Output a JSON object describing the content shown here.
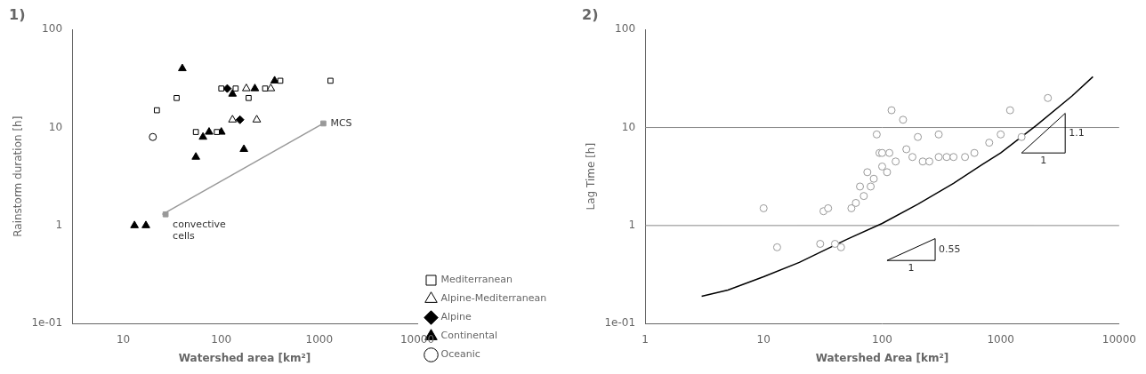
{
  "chart_data": [
    {
      "type": "scatter",
      "title": "1)",
      "x_label": "Watershed area [km²]",
      "y_label": "Rainstorm duration [h]",
      "log": true,
      "grid": false,
      "legend": "lower right",
      "xlim": [
        3,
        10000
      ],
      "ylim": [
        0.1,
        100
      ],
      "xticks": [
        10,
        100,
        1000,
        10000
      ],
      "yticks": [
        {
          "value": 0.1,
          "label": "1e-01"
        },
        1,
        10,
        100
      ],
      "series": [
        {
          "name": "Mediterranean",
          "type": "scatter",
          "marker": "square_open",
          "color": "black",
          "x": [
            22,
            35,
            55,
            90,
            100,
            140,
            190,
            280,
            400,
            1300
          ],
          "y": [
            15,
            20,
            9,
            9,
            25,
            25,
            20,
            25,
            30,
            30
          ]
        },
        {
          "name": "Alpine-Mediterranean",
          "type": "scatter",
          "marker": "triangle_open",
          "color": "black",
          "x": [
            130,
            180,
            230,
            320
          ],
          "y": [
            12,
            25,
            12,
            25
          ]
        },
        {
          "name": "Alpine",
          "type": "scatter",
          "marker": "diamond",
          "color": "black",
          "x": [
            115,
            155
          ],
          "y": [
            25,
            12
          ]
        },
        {
          "name": "Continental",
          "type": "scatter",
          "marker": "triangle",
          "color": "black",
          "x": [
            13,
            17,
            40,
            55,
            65,
            75,
            100,
            130,
            170,
            220,
            350
          ],
          "y": [
            1.0,
            1.0,
            40,
            5,
            8,
            9,
            9,
            22,
            6,
            25,
            30
          ]
        },
        {
          "name": "Oceanic",
          "type": "scatter",
          "marker": "circle_open",
          "color": "black",
          "x": [
            20
          ],
          "y": [
            8
          ]
        },
        {
          "type": "line",
          "color": "#999999",
          "x": [
            25,
            1100
          ],
          "y": [
            1.3,
            11.0
          ]
        },
        {
          "type": "scatter",
          "marker": "square",
          "color": "#999999",
          "x": [
            27,
            1100
          ],
          "y": [
            1.3,
            11.0
          ]
        }
      ],
      "annotations": [
        {
          "text": "convective\ncells",
          "x": 27,
          "y": 1.3
        },
        {
          "text": "MCS",
          "x": 1100,
          "y": 11.0
        }
      ]
    },
    {
      "type": "scatter",
      "title": "2)",
      "x_label": "Watershed Area [km²]",
      "y_label": "Lag Time [h]",
      "log": true,
      "grid": false,
      "xlim": [
        1,
        10000
      ],
      "ylim": [
        0.1,
        100
      ],
      "xticks": [
        1,
        10,
        100,
        1000,
        10000
      ],
      "yticks": [
        {
          "value": 0.1,
          "label": "1e-01"
        },
        1,
        10,
        100
      ],
      "series": [
        {
          "type": "scatter",
          "marker": "circle_open",
          "color": "#999999",
          "x": [
            10,
            13,
            30,
            32,
            35,
            40,
            45,
            55,
            60,
            65,
            70,
            75,
            80,
            85,
            90,
            95,
            100,
            100,
            110,
            115,
            120,
            130,
            150,
            160,
            180,
            200,
            220,
            250,
            300,
            300,
            350,
            400,
            500,
            600,
            800,
            1000,
            1200,
            1500,
            2500
          ],
          "y": [
            1.5,
            0.6,
            0.65,
            1.4,
            1.5,
            0.65,
            0.6,
            1.5,
            1.7,
            2.5,
            2.0,
            3.5,
            2.5,
            3.0,
            8.5,
            5.5,
            4.0,
            5.5,
            3.5,
            5.5,
            15,
            4.5,
            12,
            6.0,
            5.0,
            8.0,
            4.5,
            4.5,
            5.0,
            8.5,
            5.0,
            5.0,
            5.0,
            5.5,
            7.0,
            8.5,
            15,
            8.0,
            20
          ]
        },
        {
          "type": "line",
          "color": "black",
          "x": [
            3,
            5,
            10,
            20,
            50,
            100,
            200,
            400,
            700,
            1000,
            2000,
            4000,
            6000
          ],
          "y": [
            0.19,
            0.22,
            0.3,
            0.42,
            0.72,
            1.05,
            1.65,
            2.7,
            4.2,
            5.5,
            10.5,
            21.0,
            33.0
          ]
        }
      ],
      "hlines": {
        "values": [
          1.0,
          10.0
        ],
        "color": "#888888"
      },
      "triangles": [
        {
          "x": [
            110,
            280,
            280
          ],
          "y": [
            0.44,
            0.44,
            0.73557
          ],
          "run_label": "1",
          "rise_label": "0.55",
          "color": "black"
        },
        {
          "x": [
            1500,
            3500,
            3500
          ],
          "y": [
            5.5,
            5.5,
            13.968
          ],
          "run_label": "1",
          "rise_label": "1.1",
          "color": "black"
        }
      ]
    }
  ]
}
